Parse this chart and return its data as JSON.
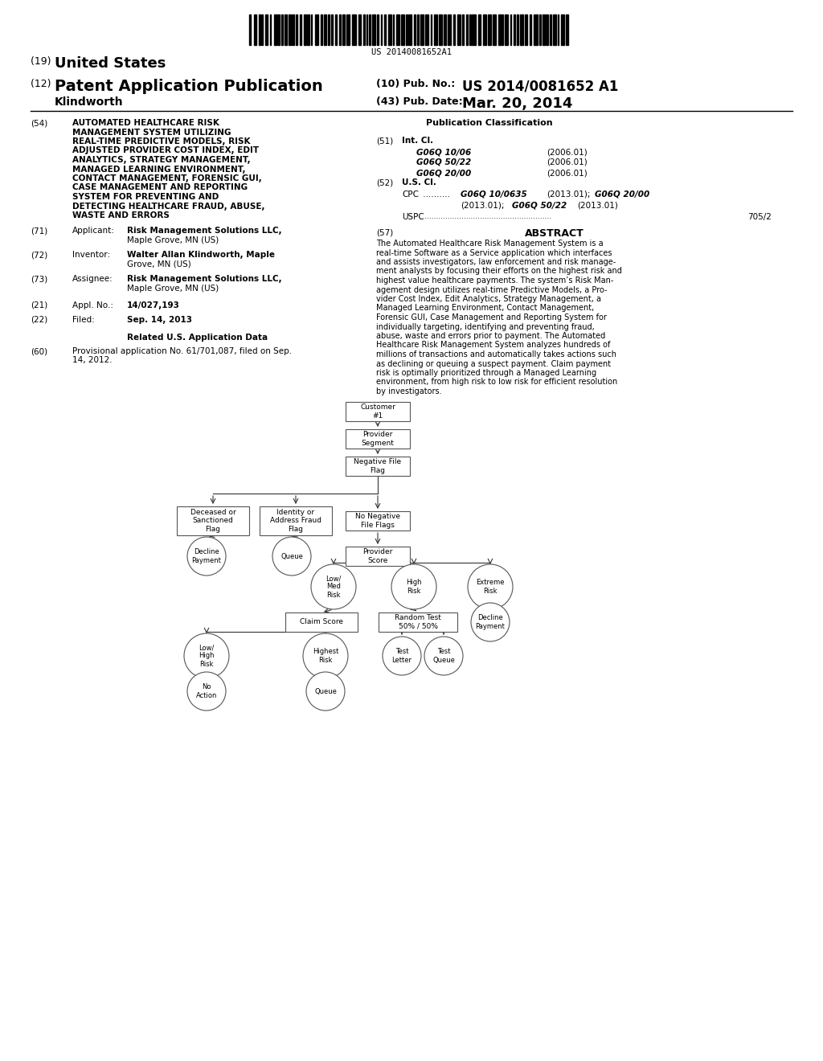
{
  "bg_color": "#ffffff",
  "barcode_text": "US 20140081652A1",
  "int_cl_items": [
    [
      "G06Q 10/06",
      "(2006.01)"
    ],
    [
      "G06Q 50/22",
      "(2006.01)"
    ],
    [
      "G06Q 20/00",
      "(2006.01)"
    ]
  ],
  "abstract_text": "The Automated Healthcare Risk Management System is a real-time Software as a Service application which interfaces and assists investigators, law enforcement and risk manage-ment analysts by focusing their efforts on the highest risk and highest value healthcare payments. The system’s Risk Man-agement design utilizes real-time Predictive Models, a Pro-vider Cost Index, Edit Analytics, Strategy Management, a Managed Learning Environment, Contact Management, Forensic GUI, Case Management and Reporting System for individually targeting, identifying and preventing fraud, abuse, waste and errors prior to payment. The Automated Healthcare Risk Management System analyzes hundreds of millions of transactions and automatically takes actions such as declining or queuing a suspect payment. Claim payment risk is optimally prioritized through a Managed Learning environment, from high risk to low risk for efficient resolution by investigators.",
  "section54_lines": [
    "AUTOMATED HEALTHCARE RISK",
    "MANAGEMENT SYSTEM UTILIZING",
    "REAL-TIME PREDICTIVE MODELS, RISK",
    "ADJUSTED PROVIDER COST INDEX, EDIT",
    "ANALYTICS, STRATEGY MANAGEMENT,",
    "MANAGED LEARNING ENVIRONMENT,",
    "CONTACT MANAGEMENT, FORENSIC GUI,",
    "CASE MANAGEMENT AND REPORTING",
    "SYSTEM FOR PREVENTING AND",
    "DETECTING HEALTHCARE FRAUD, ABUSE,",
    "WASTE AND ERRORS"
  ]
}
